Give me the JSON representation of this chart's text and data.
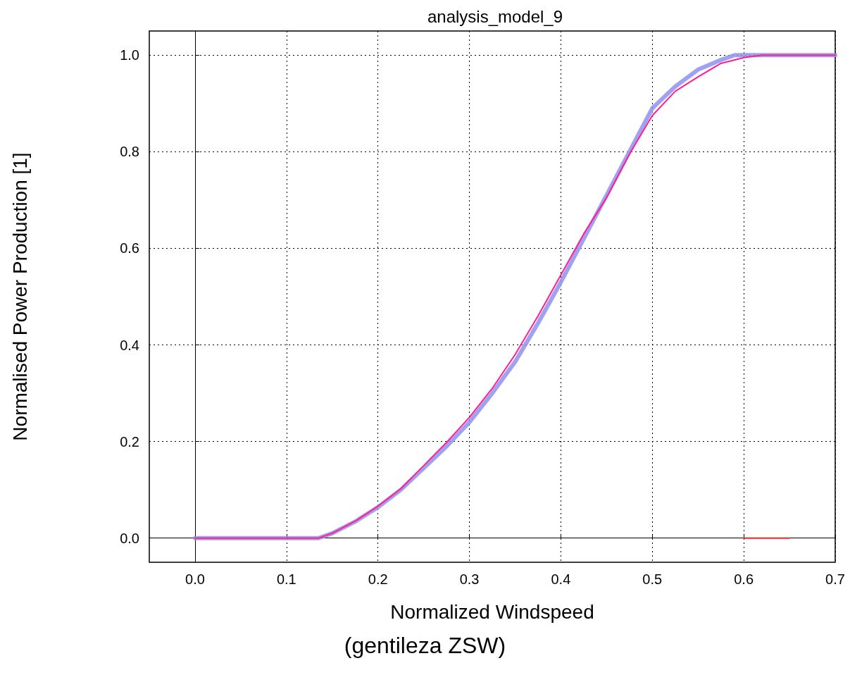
{
  "chart_data": {
    "type": "line",
    "title": "analysis_model_9",
    "xlabel": "Normalized Windspeed",
    "ylabel": "Normalised Power Production [1]",
    "annotations": [
      "(gentileza ZSW)"
    ],
    "xlim": [
      -0.05,
      0.7
    ],
    "xticks": [
      {
        "value": 0,
        "label": "0.0"
      },
      0.1,
      0.2,
      0.3,
      0.4,
      0.5,
      0.6,
      0.7
    ],
    "ylim": [
      -0.05,
      1.05
    ],
    "yticks": [
      {
        "value": 0,
        "label": "0.0"
      },
      0.2,
      0.4,
      0.6,
      0.8,
      {
        "value": 1,
        "label": "1.0"
      }
    ],
    "grid": true,
    "marker": "none",
    "line_style": "solid",
    "series": [
      {
        "color": "#9090f0",
        "x": [
          0,
          0.135,
          0.15,
          0.175,
          0.2,
          0.225,
          0.25,
          0.275,
          0.3,
          0.325,
          0.35,
          0.375,
          0.4,
          0.425,
          0.45,
          0.475,
          0.5,
          0.525,
          0.55,
          0.575,
          0.59,
          0.7
        ],
        "values": [
          0,
          0,
          0.01,
          0.034,
          0.064,
          0.1,
          0.145,
          0.19,
          0.24,
          0.3,
          0.365,
          0.445,
          0.53,
          0.62,
          0.71,
          0.8,
          0.89,
          0.935,
          0.97,
          0.99,
          1,
          1
        ]
      },
      {
        "color": "#ff1f8f",
        "x": [
          0,
          0.135,
          0.15,
          0.175,
          0.2,
          0.225,
          0.25,
          0.275,
          0.3,
          0.325,
          0.35,
          0.375,
          0.4,
          0.425,
          0.45,
          0.475,
          0.5,
          0.525,
          0.55,
          0.575,
          0.6,
          0.62,
          0.7
        ],
        "values": [
          0,
          0,
          0.01,
          0.035,
          0.066,
          0.102,
          0.15,
          0.198,
          0.25,
          0.31,
          0.38,
          0.46,
          0.545,
          0.63,
          0.705,
          0.795,
          0.875,
          0.925,
          0.955,
          0.983,
          0.995,
          1,
          1
        ]
      },
      {
        "color": "#ff2020",
        "x": [
          0.6,
          0.65
        ],
        "values": [
          0,
          0
        ]
      }
    ]
  }
}
